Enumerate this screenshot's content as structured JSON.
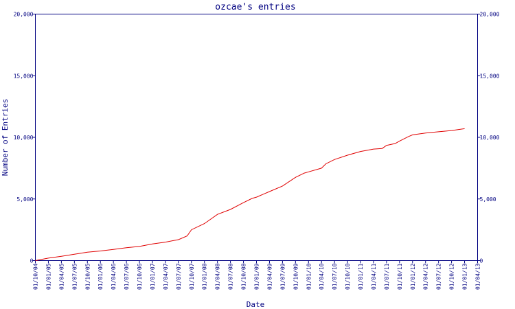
{
  "chart_data": {
    "type": "line",
    "title": "ozcae's entries",
    "xlabel": "Date",
    "ylabel": "Number of Entries",
    "x_tick_labels": [
      "01/10/04",
      "01/01/05",
      "01/04/05",
      "01/07/05",
      "01/10/05",
      "01/01/06",
      "01/04/06",
      "01/07/06",
      "01/10/06",
      "01/01/07",
      "01/04/07",
      "01/07/07",
      "01/10/07",
      "01/01/08",
      "01/04/08",
      "01/07/08",
      "01/10/08",
      "01/01/09",
      "01/04/09",
      "01/07/09",
      "01/10/09",
      "01/01/10",
      "01/04/10",
      "01/07/10",
      "01/10/10",
      "01/01/11",
      "01/04/11",
      "01/07/11",
      "01/10/11",
      "01/01/12",
      "01/04/12",
      "01/07/12",
      "01/10/12",
      "01/01/13",
      "01/04/13"
    ],
    "y_tick_labels": [
      "0",
      "5,000",
      "10,000",
      "15,000",
      "20,000"
    ],
    "ylim": [
      0,
      20000
    ],
    "grid": false,
    "series": [
      {
        "x": [
          "01/10/04",
          "01/01/05",
          "01/04/05",
          "01/07/05",
          "01/10/05",
          "01/01/06",
          "01/04/06",
          "01/07/06",
          "01/10/06",
          "01/01/07",
          "01/04/07",
          "01/07/07",
          "01/09/07",
          "01/10/07",
          "01/01/08",
          "01/04/08",
          "01/07/08",
          "01/10/08",
          "01/12/08",
          "01/01/09",
          "01/04/09",
          "01/07/09",
          "01/10/09",
          "01/12/09",
          "01/01/10",
          "01/04/10",
          "01/05/10",
          "01/07/10",
          "01/10/10",
          "01/01/11",
          "01/04/11",
          "01/06/11",
          "01/07/11",
          "01/09/11",
          "01/10/11",
          "01/12/11",
          "01/01/12",
          "01/04/12",
          "01/07/12",
          "01/10/12",
          "01/01/13"
        ],
        "values": [
          0,
          200,
          350,
          520,
          680,
          780,
          900,
          1050,
          1150,
          1350,
          1500,
          1700,
          2000,
          2500,
          3000,
          3750,
          4150,
          4700,
          5050,
          5150,
          5600,
          6050,
          6750,
          7100,
          7200,
          7500,
          7850,
          8200,
          8550,
          8850,
          9050,
          9100,
          9350,
          9500,
          9700,
          10050,
          10200,
          10350,
          10450,
          10550,
          10700
        ]
      }
    ]
  }
}
